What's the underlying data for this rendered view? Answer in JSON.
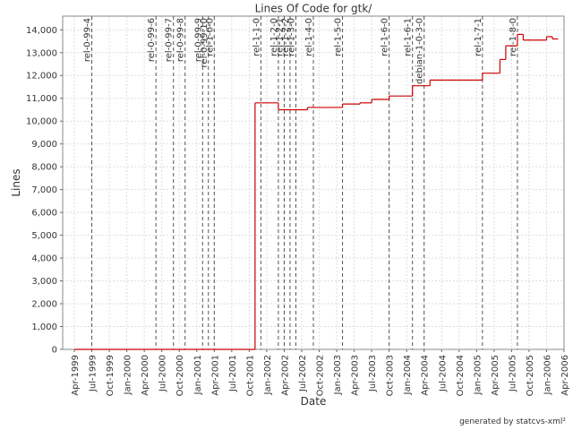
{
  "chart_data": {
    "type": "line",
    "title": "Lines Of Code for gtk/",
    "x_label": "Date",
    "y_label": "Lines",
    "footer": "generated by statcvs-xml²",
    "x": [
      "1999-04",
      "2001-11",
      "2002-03",
      "2002-08",
      "2003-02",
      "2003-05",
      "2003-07",
      "2003-10",
      "2004-02",
      "2004-05",
      "2005-02",
      "2005-05",
      "2005-06",
      "2005-08",
      "2005-09",
      "2006-01",
      "2006-02",
      "2006-03"
    ],
    "series": [
      {
        "name": "Lines",
        "color": "#cc0000",
        "values": [
          0,
          10800,
          10500,
          10600,
          10750,
          10800,
          10950,
          11100,
          11550,
          11800,
          12100,
          12700,
          13300,
          13800,
          13550,
          13700,
          13600,
          13600
        ]
      }
    ],
    "markers": [
      {
        "label": "rel-0-99-4",
        "x": "1999-07"
      },
      {
        "label": "rel-0-99-6",
        "x": "2000-06"
      },
      {
        "label": "rel-0-99-7",
        "x": "2000-09"
      },
      {
        "label": "rel-0-99-8",
        "x": "2000-11"
      },
      {
        "label": "rel-0-99-9",
        "x": "2001-02"
      },
      {
        "label": "rel-0-99-10",
        "x": "2001-03"
      },
      {
        "label": "rel-1-0-0",
        "x": "2001-04"
      },
      {
        "label": "rel-1-1-0",
        "x": "2001-12"
      },
      {
        "label": "rel-1-2-0",
        "x": "2002-03"
      },
      {
        "label": "rel-1-2-1",
        "x": "2002-04"
      },
      {
        "label": "rel-1-2-2",
        "x": "2002-05"
      },
      {
        "label": "rel-1-3-0",
        "x": "2002-06"
      },
      {
        "label": "rel-1-4-0",
        "x": "2002-09"
      },
      {
        "label": "rel-1-5-0",
        "x": "2003-02"
      },
      {
        "label": "rel-1-6-0",
        "x": "2003-10"
      },
      {
        "label": "rel-1-6-1",
        "x": "2004-02"
      },
      {
        "label": "debian-1-0-3-0",
        "x": "2004-04"
      },
      {
        "label": "rel-1-7-1",
        "x": "2005-02"
      },
      {
        "label": "rel-1-8-0",
        "x": "2005-08"
      }
    ],
    "xlim": [
      "1999-02",
      "2006-04"
    ],
    "xticks": [
      {
        "value": "1999-04",
        "label": "Apr-1999"
      },
      {
        "value": "1999-07",
        "label": "Jul-1999"
      },
      {
        "value": "1999-10",
        "label": "Oct-1999"
      },
      {
        "value": "2000-01",
        "label": "Jan-2000"
      },
      {
        "value": "2000-04",
        "label": "Apr-2000"
      },
      {
        "value": "2000-07",
        "label": "Jul-2000"
      },
      {
        "value": "2000-10",
        "label": "Oct-2000"
      },
      {
        "value": "2001-01",
        "label": "Jan-2001"
      },
      {
        "value": "2001-04",
        "label": "Apr-2001"
      },
      {
        "value": "2001-07",
        "label": "Jul-2001"
      },
      {
        "value": "2001-10",
        "label": "Oct-2001"
      },
      {
        "value": "2002-01",
        "label": "Jan-2002"
      },
      {
        "value": "2002-04",
        "label": "Apr-2002"
      },
      {
        "value": "2002-07",
        "label": "Jul-2002"
      },
      {
        "value": "2002-10",
        "label": "Oct-2002"
      },
      {
        "value": "2003-01",
        "label": "Jan-2003"
      },
      {
        "value": "2003-04",
        "label": "Apr-2003"
      },
      {
        "value": "2003-07",
        "label": "Jul-2003"
      },
      {
        "value": "2003-10",
        "label": "Oct-2003"
      },
      {
        "value": "2004-01",
        "label": "Jan-2004"
      },
      {
        "value": "2004-04",
        "label": "Apr-2004"
      },
      {
        "value": "2004-07",
        "label": "Jul-2004"
      },
      {
        "value": "2004-10",
        "label": "Oct-2004"
      },
      {
        "value": "2005-01",
        "label": "Jan-2005"
      },
      {
        "value": "2005-04",
        "label": "Apr-2005"
      },
      {
        "value": "2005-07",
        "label": "Jul-2005"
      },
      {
        "value": "2005-10",
        "label": "Oct-2005"
      },
      {
        "value": "2006-01",
        "label": "Jan-2006"
      },
      {
        "value": "2006-04",
        "label": "Apr-2006"
      }
    ],
    "ylim": [
      0,
      14600
    ],
    "yticks": [
      0,
      {
        "value": 1000,
        "label": "1,000"
      },
      {
        "value": 2000,
        "label": "2,000"
      },
      {
        "value": 3000,
        "label": "3,000"
      },
      {
        "value": 4000,
        "label": "4,000"
      },
      {
        "value": 5000,
        "label": "5,000"
      },
      {
        "value": 6000,
        "label": "6,000"
      },
      {
        "value": 7000,
        "label": "7,000"
      },
      {
        "value": 8000,
        "label": "8,000"
      },
      {
        "value": 9000,
        "label": "9,000"
      },
      {
        "value": 10000,
        "label": "10,000"
      },
      {
        "value": 11000,
        "label": "11,000"
      },
      {
        "value": 12000,
        "label": "12,000"
      },
      {
        "value": 13000,
        "label": "13,000"
      },
      {
        "value": 14000,
        "label": "14,000"
      }
    ],
    "grid": true,
    "legend": false
  }
}
